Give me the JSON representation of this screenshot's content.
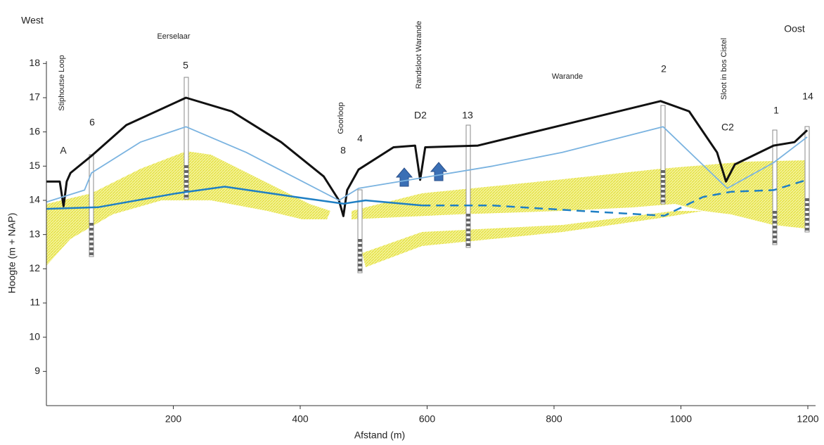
{
  "chart_data": {
    "type": "line",
    "x_label": "Afstand (m)",
    "y_label": "Hoogte (m + NAP)",
    "xlim": [
      0,
      1200
    ],
    "ylim": [
      8,
      18
    ],
    "xticks": [
      200,
      400,
      600,
      800,
      1000,
      1200
    ],
    "yticks": [
      9,
      10,
      11,
      12,
      13,
      14,
      15,
      16,
      17,
      18
    ],
    "series": [
      {
        "color": "#111111",
        "width": 3,
        "dash": false,
        "x": [
          0,
          21,
          27,
          32,
          38,
          71,
          126,
          220,
          292,
          370,
          437,
          461,
          468,
          474,
          492,
          547,
          581,
          589,
          597,
          680,
          813,
          968,
          1013,
          1057,
          1071,
          1085,
          1146,
          1179,
          1199
        ],
        "values": [
          14.55,
          14.55,
          13.83,
          14.55,
          14.8,
          15.3,
          16.2,
          17.0,
          16.6,
          15.7,
          14.7,
          14.0,
          13.54,
          14.3,
          14.9,
          15.55,
          15.6,
          14.6,
          15.55,
          15.6,
          16.2,
          16.9,
          16.6,
          15.4,
          14.55,
          15.05,
          15.6,
          15.7,
          16.05
        ]
      },
      {
        "color": "#7ab3e0",
        "width": 1.8,
        "dash": false,
        "x": [
          0,
          60,
          71,
          148,
          220,
          315,
          461,
          492,
          703,
          813,
          972,
          1073,
          1146,
          1199
        ],
        "values": [
          13.95,
          14.3,
          14.8,
          15.7,
          16.15,
          15.4,
          14.0,
          14.35,
          15.0,
          15.4,
          16.15,
          14.35,
          15.1,
          15.85
        ]
      },
      {
        "color": "#1f7fc4",
        "width": 2.5,
        "dash": false,
        "x": [
          0,
          82,
          204,
          281,
          392,
          468,
          503,
          592
        ],
        "values": [
          13.75,
          13.8,
          14.2,
          14.4,
          14.1,
          13.9,
          14.0,
          13.85
        ]
      },
      {
        "color": "#1f7fc4",
        "width": 2.5,
        "dash": true,
        "x": [
          592,
          703,
          835,
          974,
          1035,
          1079,
          1146,
          1199
        ],
        "values": [
          13.85,
          13.85,
          13.7,
          13.55,
          14.1,
          14.25,
          14.3,
          14.6
        ]
      }
    ],
    "annotations": [
      "West",
      "Oost",
      "Eerselaar",
      "Warande",
      "5",
      "2",
      "6",
      "A",
      "8",
      "4",
      "D2",
      "13",
      "1",
      "14",
      "C2",
      "Stiphoutse Loop",
      "Goorloop",
      "Randsloot Warande",
      "Sloot in bos Cistel"
    ]
  }
}
